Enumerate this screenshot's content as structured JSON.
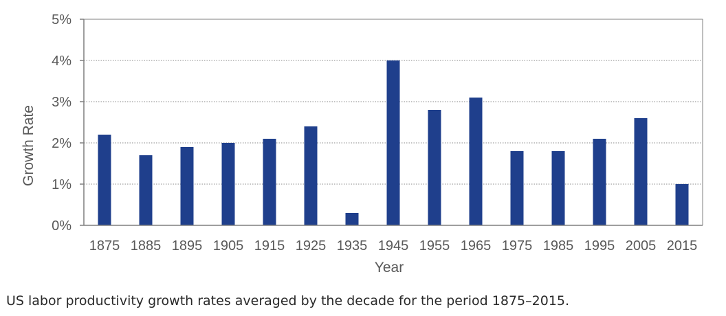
{
  "chart_data": {
    "type": "bar",
    "categories": [
      "1875",
      "1885",
      "1895",
      "1905",
      "1915",
      "1925",
      "1935",
      "1945",
      "1955",
      "1965",
      "1975",
      "1985",
      "1995",
      "2005",
      "2015"
    ],
    "values": [
      2.2,
      1.7,
      1.9,
      2.0,
      2.1,
      2.4,
      0.3,
      4.0,
      2.8,
      3.1,
      1.8,
      1.8,
      2.1,
      2.6,
      1.0
    ],
    "xlabel": "Year",
    "ylabel": "Growth Rate",
    "ylim": [
      0,
      5
    ],
    "yticks": [
      0,
      1,
      2,
      3,
      4,
      5
    ],
    "ytick_labels": [
      "0%",
      "1%",
      "2%",
      "3%",
      "4%",
      "5%"
    ],
    "grid": "horizontal dotted",
    "bar_color": "#1f3f8c",
    "grid_color": "#8a8a8a",
    "axis_color": "#7f7f7f",
    "text_color": "#595959"
  },
  "caption": "US labor productivity growth rates averaged by the decade for the period 1875–2015."
}
